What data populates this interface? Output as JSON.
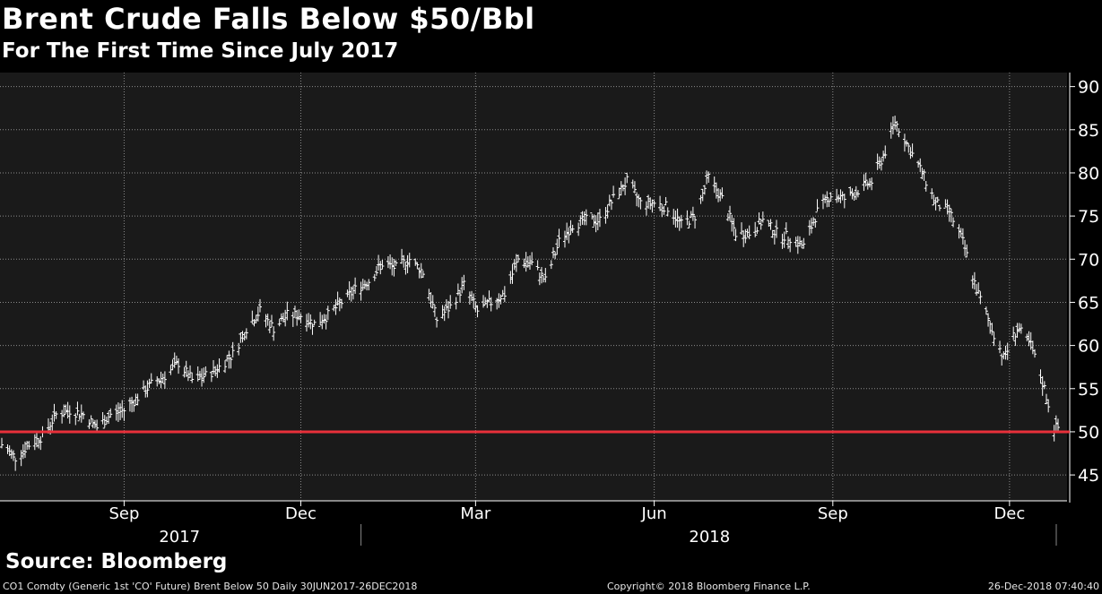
{
  "chart_data": {
    "type": "line",
    "subtype": "ohlc-bars",
    "title": "Brent Crude Falls Below $50/Bbl",
    "subtitle": "For The First Time Since July 2017",
    "x_range": [
      "2017-06-30",
      "2018-12-26"
    ],
    "ylim": [
      42,
      91
    ],
    "y_ticks": [
      45,
      50,
      55,
      60,
      65,
      70,
      75,
      80,
      85,
      90
    ],
    "y_axis_side": "right",
    "x_month_ticks": [
      {
        "label": "Sep",
        "date": "2017-09-01"
      },
      {
        "label": "Dec",
        "date": "2017-12-01"
      },
      {
        "label": "Mar",
        "date": "2018-03-01"
      },
      {
        "label": "Jun",
        "date": "2018-06-01"
      },
      {
        "label": "Sep",
        "date": "2018-09-01"
      },
      {
        "label": "Dec",
        "date": "2018-12-01"
      }
    ],
    "x_year_labels": [
      {
        "label": "2017",
        "start": "2017-06-30",
        "end": "2017-12-31"
      },
      {
        "label": "2018",
        "start": "2018-01-01",
        "end": "2018-12-26"
      }
    ],
    "grid": true,
    "reference_line": {
      "value": 50,
      "color": "#e8303a"
    },
    "series": [
      {
        "points": [
          [
            "2017-06-30",
            48.5
          ],
          [
            "2017-07-07",
            47.0
          ],
          [
            "2017-07-14",
            48.5
          ],
          [
            "2017-07-21",
            49.5
          ],
          [
            "2017-07-28",
            52.0
          ],
          [
            "2017-08-04",
            52.5
          ],
          [
            "2017-08-11",
            52.0
          ],
          [
            "2017-08-18",
            50.5
          ],
          [
            "2017-08-25",
            52.0
          ],
          [
            "2017-09-01",
            52.5
          ],
          [
            "2017-09-08",
            54.0
          ],
          [
            "2017-09-15",
            55.5
          ],
          [
            "2017-09-22",
            56.5
          ],
          [
            "2017-09-29",
            58.0
          ],
          [
            "2017-10-06",
            56.0
          ],
          [
            "2017-10-13",
            56.5
          ],
          [
            "2017-10-20",
            57.5
          ],
          [
            "2017-10-27",
            59.0
          ],
          [
            "2017-11-03",
            62.0
          ],
          [
            "2017-11-10",
            64.0
          ],
          [
            "2017-11-17",
            62.0
          ],
          [
            "2017-11-24",
            63.5
          ],
          [
            "2017-12-01",
            63.5
          ],
          [
            "2017-12-08",
            62.5
          ],
          [
            "2017-12-15",
            63.5
          ],
          [
            "2017-12-22",
            65.0
          ],
          [
            "2017-12-29",
            66.5
          ],
          [
            "2018-01-05",
            67.5
          ],
          [
            "2018-01-12",
            69.5
          ],
          [
            "2018-01-19",
            69.0
          ],
          [
            "2018-01-26",
            70.0
          ],
          [
            "2018-02-02",
            68.5
          ],
          [
            "2018-02-09",
            63.0
          ],
          [
            "2018-02-16",
            64.5
          ],
          [
            "2018-02-23",
            67.0
          ],
          [
            "2018-03-02",
            64.0
          ],
          [
            "2018-03-09",
            65.0
          ],
          [
            "2018-03-16",
            66.0
          ],
          [
            "2018-03-23",
            70.0
          ],
          [
            "2018-03-30",
            69.5
          ],
          [
            "2018-04-06",
            67.5
          ],
          [
            "2018-04-13",
            72.0
          ],
          [
            "2018-04-20",
            74.0
          ],
          [
            "2018-04-27",
            74.5
          ],
          [
            "2018-05-04",
            74.5
          ],
          [
            "2018-05-11",
            77.0
          ],
          [
            "2018-05-18",
            79.0
          ],
          [
            "2018-05-25",
            76.5
          ],
          [
            "2018-06-01",
            76.5
          ],
          [
            "2018-06-08",
            76.0
          ],
          [
            "2018-06-15",
            74.0
          ],
          [
            "2018-06-22",
            75.0
          ],
          [
            "2018-06-29",
            79.5
          ],
          [
            "2018-07-06",
            77.0
          ],
          [
            "2018-07-13",
            73.0
          ],
          [
            "2018-07-20",
            73.0
          ],
          [
            "2018-07-27",
            74.5
          ],
          [
            "2018-08-03",
            73.0
          ],
          [
            "2018-08-10",
            72.5
          ],
          [
            "2018-08-17",
            71.5
          ],
          [
            "2018-08-24",
            75.5
          ],
          [
            "2018-08-31",
            77.5
          ],
          [
            "2018-09-07",
            77.0
          ],
          [
            "2018-09-14",
            78.0
          ],
          [
            "2018-09-21",
            79.0
          ],
          [
            "2018-09-28",
            82.5
          ],
          [
            "2018-10-03",
            86.0
          ],
          [
            "2018-10-10",
            83.0
          ],
          [
            "2018-10-17",
            80.0
          ],
          [
            "2018-10-24",
            76.5
          ],
          [
            "2018-10-31",
            75.5
          ],
          [
            "2018-11-07",
            72.0
          ],
          [
            "2018-11-14",
            66.5
          ],
          [
            "2018-11-21",
            62.5
          ],
          [
            "2018-11-28",
            58.5
          ],
          [
            "2018-12-05",
            62.0
          ],
          [
            "2018-12-12",
            60.0
          ],
          [
            "2018-12-19",
            55.0
          ],
          [
            "2018-12-24",
            50.5
          ]
        ]
      }
    ]
  },
  "source": "Source: Bloomberg",
  "footer": {
    "left": "CO1 Comdty (Generic 1st 'CO' Future) Brent Below 50  Daily 30JUN2017-26DEC2018",
    "middle": "Copyright© 2018 Bloomberg Finance L.P.",
    "right": "26-Dec-2018 07:40:40"
  },
  "colors": {
    "background": "#000000",
    "plot_background": "#1a1a1a",
    "grid": "#8c8c8c",
    "price": "#ffffff",
    "reference_line": "#e8303a"
  }
}
